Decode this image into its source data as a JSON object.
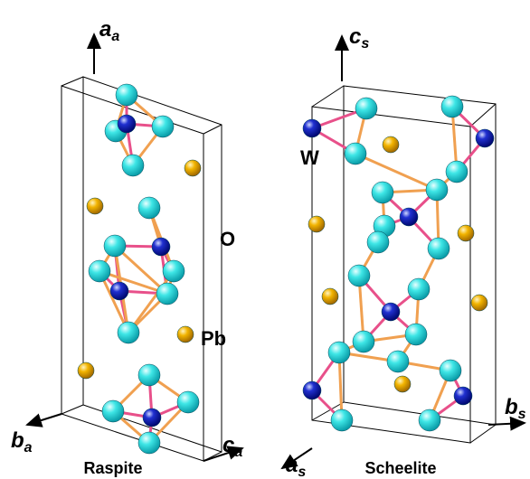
{
  "raspite": {
    "title": "Raspite",
    "axes": [
      {
        "symbol": "a",
        "subscript": "a"
      },
      {
        "symbol": "b",
        "subscript": "a"
      },
      {
        "symbol": "c",
        "subscript": "a"
      }
    ],
    "atom_labels": [
      "O",
      "Pb"
    ]
  },
  "scheelite": {
    "title": "Scheelite",
    "axes": [
      {
        "symbol": "c",
        "subscript": "s"
      },
      {
        "symbol": "a",
        "subscript": "s"
      },
      {
        "symbol": "b",
        "subscript": "s"
      }
    ],
    "atom_labels": [
      "W"
    ]
  }
}
